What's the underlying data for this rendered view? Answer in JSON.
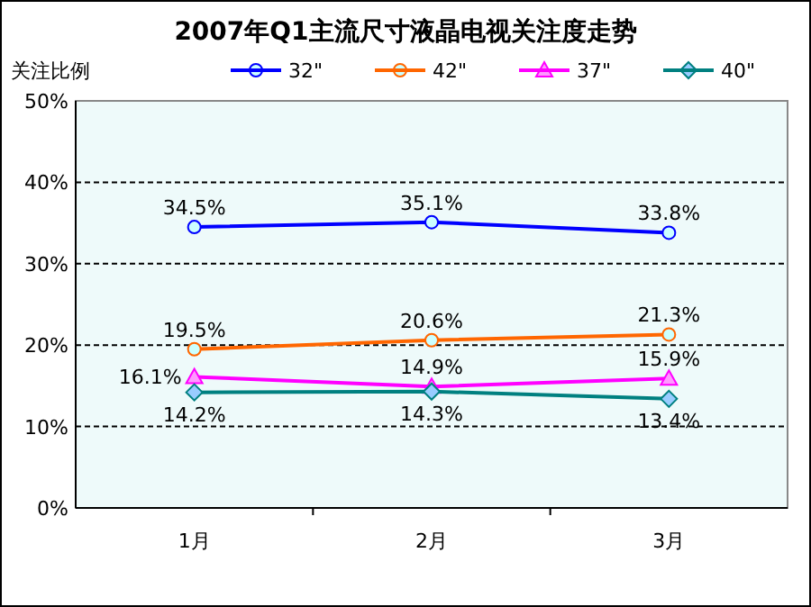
{
  "chart_data": {
    "type": "line",
    "title": "2007年Q1主流尺寸液晶电视关注度走势",
    "ylabel": "关注比例",
    "categories": [
      "1月",
      "2月",
      "3月"
    ],
    "series": [
      {
        "name": "32\"",
        "color": "#0000ff",
        "marker": "circle",
        "values": [
          34.5,
          35.1,
          33.8
        ],
        "value_labels": [
          "34.5%",
          "35.1%",
          "33.8%"
        ]
      },
      {
        "name": "42\"",
        "color": "#ff6600",
        "marker": "circle",
        "values": [
          19.5,
          20.6,
          21.3
        ],
        "value_labels": [
          "19.5%",
          "20.6%",
          "21.3%"
        ]
      },
      {
        "name": "37\"",
        "color": "#ff00ff",
        "marker": "triangle",
        "values": [
          16.1,
          14.9,
          15.9
        ],
        "value_labels": [
          "16.1%",
          "14.9%",
          "15.9%"
        ]
      },
      {
        "name": "40\"",
        "color": "#008080",
        "marker": "diamond",
        "values": [
          14.2,
          14.3,
          13.4
        ],
        "value_labels": [
          "14.2%",
          "14.3%",
          "13.4%"
        ]
      }
    ],
    "ylim": [
      0,
      50
    ],
    "yticks": [
      {
        "value": 0,
        "label": "0%"
      },
      {
        "value": 10,
        "label": "10%"
      },
      {
        "value": 20,
        "label": "20%"
      },
      {
        "value": 30,
        "label": "30%"
      },
      {
        "value": 40,
        "label": "40%"
      },
      {
        "value": 50,
        "label": "50%"
      }
    ],
    "grid": "y",
    "legend": "top"
  }
}
